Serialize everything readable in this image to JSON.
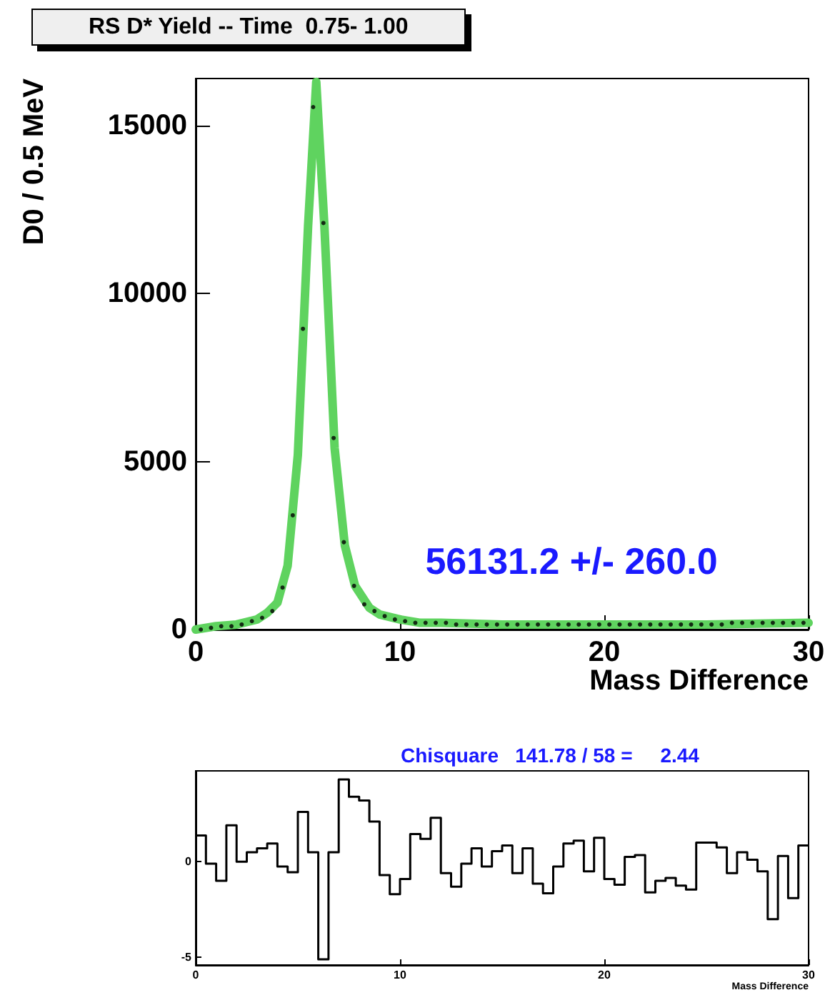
{
  "chart_data": [
    {
      "type": "line",
      "title": "RS D* Yield -- Time  0.75- 1.00",
      "xlabel": "Mass Difference",
      "ylabel": "D0 / 0.5 MeV",
      "annotations": [
        "56131.2 +/- 260.0"
      ],
      "xlim": [
        0,
        30
      ],
      "ylim": [
        0,
        16400
      ],
      "xticks": [
        0,
        10,
        20,
        30
      ],
      "yticks": [
        0,
        5000,
        10000,
        15000
      ],
      "grid": false,
      "marker": "circle",
      "series": [
        {
          "marker": "none",
          "color": "#5fd35f",
          "x": [
            0,
            1,
            2,
            3,
            3.5,
            4,
            4.5,
            5,
            5.5,
            5.9,
            6.3,
            6.8,
            7.3,
            7.8,
            8.5,
            9,
            10,
            11,
            12,
            15,
            20,
            25,
            30
          ],
          "values": [
            0,
            100,
            150,
            300,
            500,
            800,
            1900,
            5200,
            12000,
            16300,
            12000,
            5400,
            2500,
            1300,
            650,
            450,
            300,
            200,
            200,
            150,
            150,
            150,
            200
          ]
        },
        {
          "type": "scatter",
          "color": "#000000",
          "x": [
            0.25,
            0.75,
            1.25,
            1.75,
            2.25,
            2.75,
            3.25,
            3.75,
            4.25,
            4.75,
            5.25,
            5.75,
            6.25,
            6.75,
            7.25,
            7.75,
            8.25,
            8.75,
            9.25,
            9.75,
            10.25,
            10.75,
            11.25,
            11.75,
            12.25,
            12.75,
            13.25,
            13.75,
            14.25,
            14.75,
            15.25,
            15.75,
            16.25,
            16.75,
            17.25,
            17.75,
            18.25,
            18.75,
            19.25,
            19.75,
            20.25,
            20.75,
            21.25,
            21.75,
            22.25,
            22.75,
            23.25,
            23.75,
            24.25,
            24.75,
            25.25,
            25.75,
            26.25,
            26.75,
            27.25,
            27.75,
            28.25,
            28.75,
            29.25,
            29.75
          ],
          "values": [
            0,
            50,
            100,
            100,
            150,
            250,
            350,
            550,
            1250,
            3400,
            8950,
            15550,
            12100,
            5700,
            2600,
            1300,
            750,
            550,
            400,
            300,
            250,
            200,
            200,
            200,
            200,
            150,
            150,
            150,
            150,
            150,
            150,
            150,
            150,
            150,
            150,
            150,
            150,
            150,
            150,
            150,
            150,
            150,
            150,
            150,
            150,
            150,
            150,
            150,
            150,
            150,
            150,
            150,
            200,
            200,
            200,
            200,
            200,
            200,
            200,
            200
          ]
        }
      ]
    },
    {
      "type": "histogram",
      "xlabel": "Mass Difference",
      "annotations": [
        "Chisquare   141.78 / 58 =     2.44"
      ],
      "xlim": [
        0,
        30
      ],
      "ylim": [
        -5.4,
        4.75
      ],
      "xticks": [
        0,
        10,
        20,
        30
      ],
      "yticks": [
        0,
        -5
      ],
      "grid": false,
      "color": "#000000",
      "bins": [
        0,
        0.5,
        1,
        1.5,
        2,
        2.5,
        3,
        3.5,
        4,
        4.5,
        5,
        5.5,
        6,
        6.5,
        7,
        7.5,
        8,
        8.5,
        9,
        9.5,
        10,
        10.5,
        11,
        11.5,
        12,
        12.5,
        13,
        13.5,
        14,
        14.5,
        15,
        15.5,
        16,
        16.5,
        17,
        17.5,
        18,
        18.5,
        19,
        19.5,
        20,
        20.5,
        21,
        21.5,
        22,
        22.5,
        23,
        23.5,
        24,
        24.5,
        25,
        25.5,
        26,
        26.5,
        27,
        27.5,
        28,
        28.5,
        29,
        29.5,
        30
      ],
      "values": [
        1.37,
        -0.1,
        -1.0,
        1.9,
        0,
        0.5,
        0.7,
        0.95,
        -0.25,
        -0.55,
        2.6,
        0.5,
        -5.1,
        0.5,
        4.3,
        3.4,
        3.2,
        2.1,
        -0.7,
        -1.7,
        -0.9,
        1.45,
        1.2,
        2.3,
        -0.6,
        -1.3,
        -0.1,
        0.7,
        -0.25,
        0.55,
        0.85,
        -0.6,
        0.7,
        -1.15,
        -1.65,
        -0.25,
        0.95,
        1.1,
        -0.5,
        1.25,
        -0.9,
        -1.2,
        0.25,
        0.35,
        -1.6,
        -1.0,
        -0.85,
        -1.25,
        -1.45,
        1.0,
        1.0,
        0.75,
        -0.6,
        0.5,
        0.1,
        -0.5,
        -3.0,
        0.3,
        -1.9,
        0.85
      ]
    }
  ]
}
